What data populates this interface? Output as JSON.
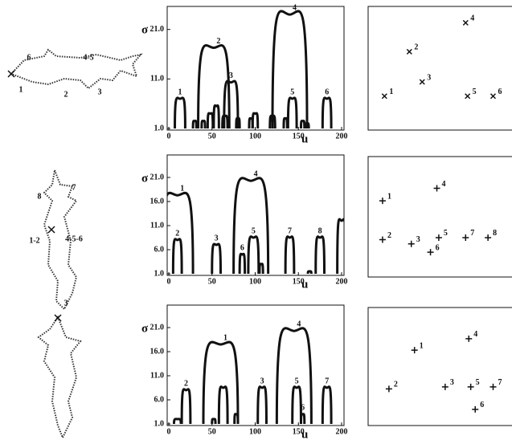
{
  "chart_data": [
    {
      "type": "css",
      "xlabel": "u",
      "ylabel": "σ",
      "marker": "x",
      "color": "#111",
      "xlim": [
        0,
        200
      ],
      "ylim": [
        1,
        25
      ],
      "xticks": [
        0,
        50,
        100,
        150,
        200
      ],
      "yticks": [
        {
          "value": 1,
          "label": "1.0"
        },
        {
          "value": 11,
          "label": "11.0"
        },
        {
          "value": 21,
          "label": "21.0"
        }
      ],
      "x": [
        13,
        52,
        72,
        140,
        143,
        183,
        30,
        40,
        48,
        55,
        65,
        80,
        95,
        100,
        120,
        135,
        155,
        160
      ],
      "values": [
        7,
        17.3,
        10.3,
        24,
        7,
        7,
        2.5,
        2.5,
        4,
        5.5,
        3.5,
        3,
        3,
        4,
        3.5,
        3,
        2.5,
        2
      ],
      "half_widths": [
        6,
        18,
        8,
        20,
        5,
        5,
        2,
        2,
        3,
        3,
        3,
        2,
        2,
        3,
        3,
        2,
        2,
        2
      ],
      "labels": [
        "1",
        "2",
        "3",
        "4",
        "5",
        "6",
        null,
        null,
        null,
        null,
        null,
        null,
        null,
        null,
        null,
        null,
        null,
        null
      ],
      "annotations": [
        "6",
        "4-5",
        "1",
        "2",
        "3"
      ]
    },
    {
      "type": "css",
      "xlabel": "u",
      "ylabel": "σ",
      "marker": "+",
      "color": "#111",
      "xlim": [
        0,
        200
      ],
      "ylim": [
        1,
        25
      ],
      "xticks": [
        0,
        50,
        100,
        150,
        200
      ],
      "yticks": [
        {
          "value": 1,
          "label": "1.0"
        },
        {
          "value": 6,
          "label": "6.0"
        },
        {
          "value": 11,
          "label": "11.0"
        },
        {
          "value": 16,
          "label": "16.0"
        },
        {
          "value": 21,
          "label": "21.0"
        }
      ],
      "x": [
        10,
        10,
        55,
        95,
        98,
        85,
        140,
        175,
        107,
        200,
        163
      ],
      "values": [
        17.3,
        8,
        7,
        20.3,
        8.5,
        5,
        8.5,
        8.5,
        3,
        12,
        1.5
      ],
      "half_widths": [
        18,
        5,
        5,
        20,
        6,
        3,
        5,
        5,
        2,
        5,
        2
      ],
      "labels": [
        "1",
        "2",
        "3",
        "4",
        "5",
        "6",
        "7",
        "8",
        null,
        null,
        null
      ],
      "annotations": [
        "8",
        "7",
        "1-2",
        "4-5-6",
        "3"
      ]
    },
    {
      "type": "css",
      "xlabel": "u",
      "ylabel": "σ",
      "marker": "+",
      "color": "#111",
      "xlim": [
        0,
        200
      ],
      "ylim": [
        1,
        25
      ],
      "xticks": [
        0,
        50,
        100,
        150,
        200
      ],
      "yticks": [
        {
          "value": 1,
          "label": "1.0"
        },
        {
          "value": 6,
          "label": "6.0"
        },
        {
          "value": 11,
          "label": "11.0"
        },
        {
          "value": 16,
          "label": "16.0"
        },
        {
          "value": 21,
          "label": "21.0"
        }
      ],
      "x": [
        60,
        20,
        108,
        145,
        148,
        155,
        183,
        63,
        78,
        10,
        52
      ],
      "values": [
        17.5,
        8,
        8.5,
        20.3,
        8.5,
        3,
        8.5,
        8.5,
        3,
        2,
        2
      ],
      "half_widths": [
        20,
        5,
        5,
        20,
        5,
        2,
        5,
        5,
        2,
        4,
        2
      ],
      "labels": [
        "1",
        "2",
        "3",
        "4",
        "5",
        "6",
        "7",
        null,
        null,
        null,
        null
      ]
    }
  ]
}
